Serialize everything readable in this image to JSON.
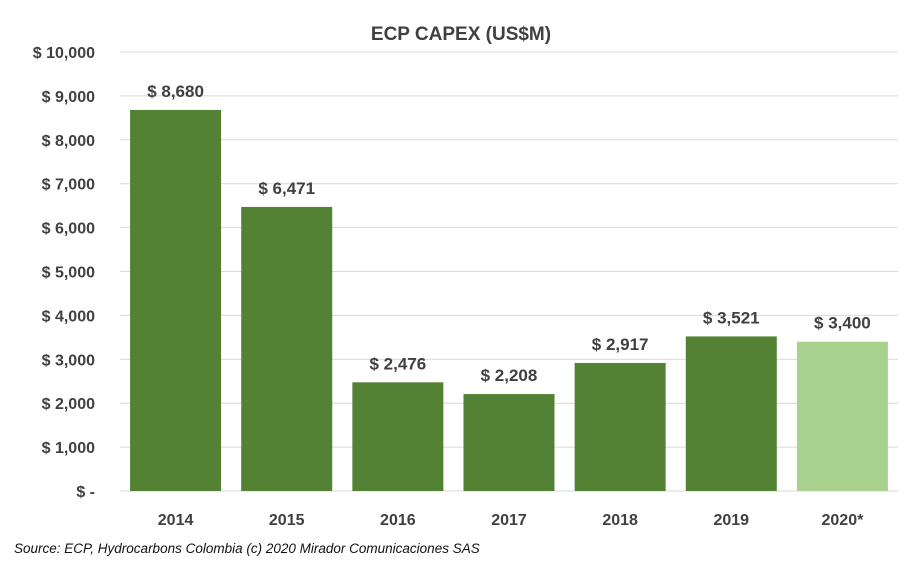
{
  "chart_data": {
    "type": "bar",
    "title": "ECP CAPEX (US$M)",
    "categories": [
      "2014",
      "2015",
      "2016",
      "2017",
      "2018",
      "2019",
      "2020*"
    ],
    "values": [
      8680,
      6471,
      2476,
      2208,
      2917,
      3521,
      3400
    ],
    "value_labels": [
      "$ 8,680",
      "$ 6,471",
      "$ 2,476",
      "$ 2,208",
      "$ 2,917",
      "$ 3,521",
      "$ 3,400"
    ],
    "y_ticks": [
      0,
      1000,
      2000,
      3000,
      4000,
      5000,
      6000,
      7000,
      8000,
      9000,
      10000
    ],
    "y_tick_labels": [
      "$ -",
      "$ 1,000",
      "$ 2,000",
      "$ 3,000",
      "$ 4,000",
      "$ 5,000",
      "$ 6,000",
      "$ 7,000",
      "$ 8,000",
      "$ 9,000",
      "$ 10,000"
    ],
    "ylim": [
      0,
      10000
    ],
    "grid": true,
    "legend": "none",
    "colors": {
      "bar": "#548235",
      "bar_projected": "#a9d18e",
      "grid": "#d9d9d9",
      "text": "#404040"
    }
  },
  "source_note": "Source: ECP, Hydrocarbons Colombia (c) 2020 Mirador Comunicaciones SAS"
}
